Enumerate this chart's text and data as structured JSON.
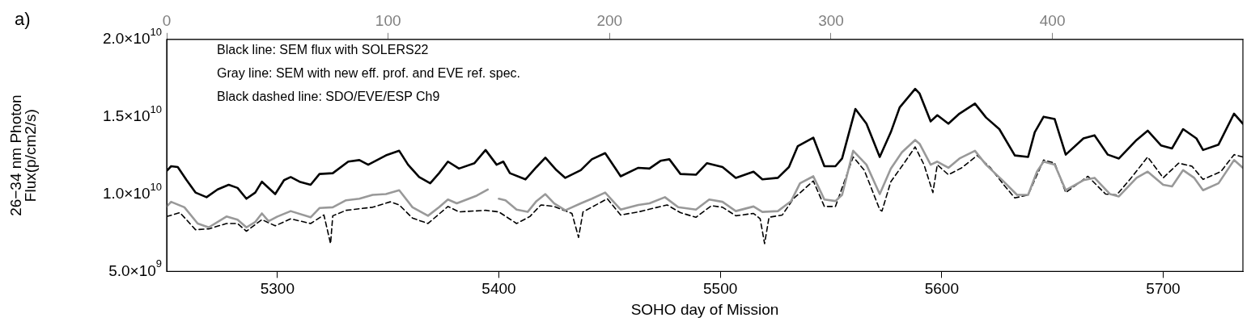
{
  "chart_data": {
    "type": "line",
    "title": "a)",
    "xlabel": "SOHO day of Mission",
    "ylabel": "26−34 nm Photon\nFlux(p/cm2/s)",
    "annotations": [
      "Black line: SEM flux with SOLERS22",
      "Gray line: SEM with new eff. prof. and EVE ref. spec.",
      "Black dashed line: SDO/EVE/ESP Ch9"
    ],
    "xlim": [
      5250,
      5736
    ],
    "xticks": [
      5300,
      5400,
      5500,
      5600,
      5700
    ],
    "x2lim": [
      0,
      486
    ],
    "x2ticks": [
      0,
      100,
      200,
      300,
      400
    ],
    "ylim": [
      5000000000.0,
      20000000000.0
    ],
    "yticks": [
      {
        "value": 5000000000.0,
        "label": "5.0×10$^{9}$"
      },
      {
        "value": 10000000000.0,
        "label": "1.0×10$^{10}$"
      },
      {
        "value": 15000000000.0,
        "label": "1.5×10$^{10}$"
      },
      {
        "value": 20000000000.0,
        "label": "2.0×10$^{10}$"
      }
    ],
    "grid": false,
    "legend": false,
    "marker": "none",
    "series": [
      {
        "color": "#000000",
        "line_style": "solid",
        "x": [
          5250,
          5252,
          5255,
          5259,
          5263,
          5268,
          5273,
          5278,
          5282,
          5286,
          5290,
          5293,
          5299,
          5303,
          5306,
          5310,
          5315,
          5319,
          5325,
          5332,
          5337,
          5341,
          5349,
          5355,
          5359,
          5364,
          5369,
          5373,
          5377,
          5382,
          5389,
          5394,
          5399,
          5402,
          5405,
          5412,
          5417,
          5421,
          5426,
          5430,
          5437,
          5442,
          5448,
          5455,
          5463,
          5468,
          5473,
          5477,
          5482,
          5489,
          5494,
          5501,
          5507,
          5515,
          5519,
          5526,
          5531,
          5535,
          5542,
          5547,
          5552,
          5555,
          5561,
          5566,
          5572,
          5577,
          5581,
          5588,
          5590,
          5595,
          5598,
          5603,
          5608,
          5615,
          5620,
          5626,
          5633,
          5639,
          5642,
          5646,
          5651,
          5656,
          5664,
          5669,
          5675,
          5680,
          5688,
          5693,
          5699,
          5704,
          5709,
          5715,
          5718,
          5725,
          5732,
          5736
        ],
        "values": [
          11500000000.0,
          11800000000.0,
          11750000000.0,
          10900000000.0,
          10100000000.0,
          9800000000.0,
          10300000000.0,
          10600000000.0,
          10400000000.0,
          9700000000.0,
          10100000000.0,
          10800000000.0,
          10000000000.0,
          10900000000.0,
          11100000000.0,
          10800000000.0,
          10600000000.0,
          11300000000.0,
          11350000000.0,
          12100000000.0,
          12200000000.0,
          11900000000.0,
          12500000000.0,
          12800000000.0,
          11900000000.0,
          11100000000.0,
          10700000000.0,
          11350000000.0,
          12100000000.0,
          11650000000.0,
          12000000000.0,
          12850000000.0,
          11900000000.0,
          12100000000.0,
          11350000000.0,
          10950000000.0,
          11750000000.0,
          12350000000.0,
          11550000000.0,
          11050000000.0,
          11550000000.0,
          12250000000.0,
          12650000000.0,
          11150000000.0,
          11700000000.0,
          11650000000.0,
          12150000000.0,
          12250000000.0,
          11300000000.0,
          11250000000.0,
          12000000000.0,
          11750000000.0,
          11050000000.0,
          11450000000.0,
          10950000000.0,
          11050000000.0,
          11750000000.0,
          13100000000.0,
          13650000000.0,
          11800000000.0,
          11800000000.0,
          12300000000.0,
          15500000000.0,
          14550000000.0,
          12400000000.0,
          14000000000.0,
          15600000000.0,
          16800000000.0,
          16500000000.0,
          14700000000.0,
          15100000000.0,
          14550000000.0,
          15200000000.0,
          15850000000.0,
          14950000000.0,
          14200000000.0,
          12500000000.0,
          12400000000.0,
          14000000000.0,
          15000000000.0,
          14850000000.0,
          12550000000.0,
          13600000000.0,
          13800000000.0,
          12550000000.0,
          12300000000.0,
          13500000000.0,
          14100000000.0,
          13150000000.0,
          12950000000.0,
          14200000000.0,
          13600000000.0,
          12850000000.0,
          13200000000.0,
          15200000000.0,
          14550000000.0
        ]
      },
      {
        "color": "#999999",
        "line_style": "solid",
        "x": [
          5250,
          5252,
          5258,
          5264,
          5269,
          5277,
          5282,
          5286,
          5290,
          5293,
          5296,
          5300,
          5306,
          5315,
          5319,
          5325,
          5331,
          5337,
          5343,
          5349,
          5355,
          5361,
          5368,
          5373,
          5377,
          5381,
          5390,
          5395,
          5397,
          5400,
          5403,
          5408,
          5413,
          5417,
          5421,
          5425,
          5430,
          5437,
          5442,
          5448,
          5455,
          5463,
          5468,
          5475,
          5481,
          5489,
          5495,
          5501,
          5507,
          5515,
          5519,
          5526,
          5532,
          5536,
          5542,
          5547,
          5552,
          5555,
          5560,
          5566,
          5572,
          5577,
          5582,
          5588,
          5590,
          5595,
          5598,
          5603,
          5608,
          5615,
          5620,
          5627,
          5634,
          5639,
          5643,
          5646,
          5651,
          5656,
          5664,
          5669,
          5676,
          5680,
          5688,
          5693,
          5700,
          5704,
          5709,
          5714,
          5718,
          5725,
          5732,
          5736
        ],
        "values": [
          9200000000.0,
          9500000000.0,
          9150000000.0,
          8100000000.0,
          7850000000.0,
          8550000000.0,
          8350000000.0,
          7850000000.0,
          8200000000.0,
          8750000000.0,
          8250000000.0,
          8550000000.0,
          8900000000.0,
          8500000000.0,
          9100000000.0,
          9150000000.0,
          9600000000.0,
          9700000000.0,
          9950000000.0,
          10000000000.0,
          10250000000.0,
          9150000000.0,
          8600000000.0,
          9150000000.0,
          9650000000.0,
          9400000000.0,
          9900000000.0,
          10300000000.0,
          null,
          9700000000.0,
          9600000000.0,
          9000000000.0,
          8850000000.0,
          9550000000.0,
          10000000000.0,
          9400000000.0,
          8950000000.0,
          9400000000.0,
          9700000000.0,
          10100000000.0,
          9000000000.0,
          9300000000.0,
          9400000000.0,
          9800000000.0,
          9150000000.0,
          9000000000.0,
          9650000000.0,
          9500000000.0,
          8900000000.0,
          9200000000.0,
          8850000000.0,
          8900000000.0,
          9550000000.0,
          10700000000.0,
          11150000000.0,
          9650000000.0,
          9550000000.0,
          9950000000.0,
          12800000000.0,
          11900000000.0,
          10000000000.0,
          11650000000.0,
          12700000000.0,
          13500000000.0,
          13250000000.0,
          11900000000.0,
          12100000000.0,
          11700000000.0,
          12300000000.0,
          12800000000.0,
          11900000000.0,
          10950000000.0,
          9950000000.0,
          9950000000.0,
          11450000000.0,
          12100000000.0,
          11900000000.0,
          10250000000.0,
          10900000000.0,
          11050000000.0,
          10000000000.0,
          9850000000.0,
          11050000000.0,
          11450000000.0,
          10600000000.0,
          10500000000.0,
          11550000000.0,
          11050000000.0,
          10250000000.0,
          10700000000.0,
          12200000000.0,
          11700000000.0
        ]
      },
      {
        "color": "#000000",
        "line_style": "dashed",
        "x": [
          5250,
          5256,
          5263,
          5269,
          5277,
          5282,
          5286,
          5293,
          5299,
          5306,
          5315,
          5321,
          5324,
          5325,
          5331,
          5343,
          5351,
          5355,
          5361,
          5368,
          5377,
          5382,
          5394,
          5400,
          5408,
          5414,
          5419,
          5425,
          5433,
          5436,
          5438,
          5449,
          5455,
          5463,
          5476,
          5482,
          5489,
          5496,
          5501,
          5507,
          5515,
          5518,
          5520,
          5522,
          5528,
          5533,
          5542,
          5547,
          5552,
          5555,
          5560,
          5565,
          5572,
          5573,
          5577,
          5583,
          5588,
          5592,
          5596,
          5598,
          5603,
          5609,
          5616,
          5622,
          5628,
          5633,
          5639,
          5646,
          5651,
          5656,
          5666,
          5674,
          5679,
          5685,
          5693,
          5700,
          5707,
          5713,
          5718,
          5726,
          5732,
          5736
        ],
        "values": [
          8550000000.0,
          8800000000.0,
          7700000000.0,
          7750000000.0,
          8100000000.0,
          8100000000.0,
          7600000000.0,
          8350000000.0,
          7950000000.0,
          8400000000.0,
          8100000000.0,
          8650000000.0,
          6800000000.0,
          8600000000.0,
          8950000000.0,
          9150000000.0,
          9500000000.0,
          9300000000.0,
          8450000000.0,
          8100000000.0,
          9200000000.0,
          8850000000.0,
          8950000000.0,
          8850000000.0,
          8100000000.0,
          8550000000.0,
          9300000000.0,
          9200000000.0,
          8750000000.0,
          7200000000.0,
          8850000000.0,
          9700000000.0,
          8650000000.0,
          8850000000.0,
          9300000000.0,
          8800000000.0,
          8500000000.0,
          9250000000.0,
          9150000000.0,
          8600000000.0,
          8750000000.0,
          8400000000.0,
          6800000000.0,
          8500000000.0,
          8650000000.0,
          9700000000.0,
          10850000000.0,
          9200000000.0,
          9200000000.0,
          10400000000.0,
          12400000000.0,
          11550000000.0,
          9000000000.0,
          8900000000.0,
          10800000000.0,
          12000000000.0,
          13050000000.0,
          11900000000.0,
          10100000000.0,
          11900000000.0,
          11250000000.0,
          11700000000.0,
          12500000000.0,
          11700000000.0,
          10600000000.0,
          9750000000.0,
          9950000000.0,
          12200000000.0,
          12000000000.0,
          10100000000.0,
          11150000000.0,
          10000000000.0,
          9950000000.0,
          10950000000.0,
          12400000000.0,
          11050000000.0,
          12000000000.0,
          11800000000.0,
          10950000000.0,
          11450000000.0,
          12550000000.0,
          12400000000.0
        ]
      }
    ]
  }
}
